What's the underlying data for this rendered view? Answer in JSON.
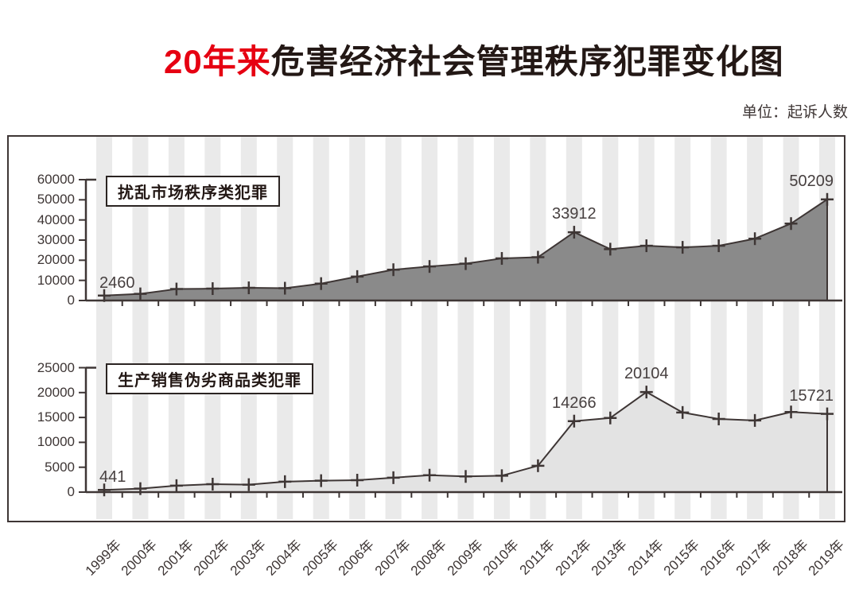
{
  "title": {
    "highlight": "20年来",
    "rest": "危害经济社会管理秩序犯罪变化图"
  },
  "unit_label": "单位：起诉人数",
  "colors": {
    "ink": "#3e3635",
    "title_black": "#231815",
    "title_red": "#e60012",
    "stripe": "#eaeaea",
    "series1_fill": "#8a8a8a",
    "series2_fill": "#e3e3e3",
    "label_text": "#474040"
  },
  "chart_data": [
    {
      "type": "area",
      "title": "扰乱市场秩序类犯罪",
      "categories": [
        "1999年",
        "2000年",
        "2001年",
        "2002年",
        "2003年",
        "2004年",
        "2005年",
        "2006年",
        "2007年",
        "2008年",
        "2009年",
        "2010年",
        "2011年",
        "2012年",
        "2013年",
        "2014年",
        "2015年",
        "2016年",
        "2017年",
        "2018年",
        "2019年"
      ],
      "values": [
        2460,
        3300,
        5700,
        5900,
        6300,
        6100,
        8400,
        11900,
        15300,
        16900,
        18300,
        20900,
        21500,
        33912,
        25500,
        27200,
        26400,
        27200,
        30700,
        38200,
        50209
      ],
      "ylim": [
        0,
        60000
      ],
      "yticks": [
        0,
        10000,
        20000,
        30000,
        40000,
        50000,
        60000
      ],
      "grid": false,
      "legend_position": "top-left",
      "annotations": [
        {
          "index": 0,
          "text": "2460",
          "align": "left"
        },
        {
          "index": 13,
          "text": "33912",
          "align": "center"
        },
        {
          "index": 20,
          "text": "50209",
          "align": "right"
        }
      ]
    },
    {
      "type": "area",
      "title": "生产销售伪劣商品类犯罪",
      "categories": [
        "1999年",
        "2000年",
        "2001年",
        "2002年",
        "2003年",
        "2004年",
        "2005年",
        "2006年",
        "2007年",
        "2008年",
        "2009年",
        "2010年",
        "2011年",
        "2012年",
        "2013年",
        "2014年",
        "2015年",
        "2016年",
        "2017年",
        "2018年",
        "2019年"
      ],
      "values": [
        441,
        700,
        1300,
        1600,
        1500,
        2100,
        2300,
        2400,
        2900,
        3400,
        3150,
        3300,
        5300,
        14266,
        14900,
        20104,
        16000,
        14700,
        14400,
        16100,
        15721
      ],
      "ylim": [
        0,
        25000
      ],
      "yticks": [
        0,
        5000,
        10000,
        15000,
        20000,
        25000
      ],
      "grid": false,
      "legend_position": "top-left",
      "annotations": [
        {
          "index": 0,
          "text": "441",
          "align": "left"
        },
        {
          "index": 13,
          "text": "14266",
          "align": "center"
        },
        {
          "index": 15,
          "text": "20104",
          "align": "center"
        },
        {
          "index": 20,
          "text": "15721",
          "align": "right"
        }
      ]
    }
  ]
}
